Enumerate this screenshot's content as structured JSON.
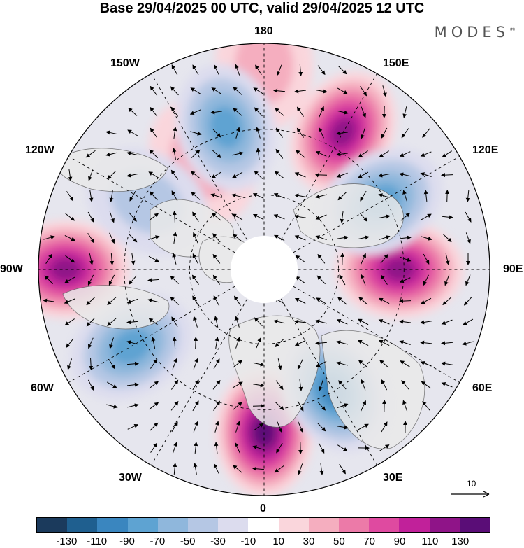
{
  "title": "Base 29/04/2025 00 UTC, valid 29/04/2025 12 UTC",
  "brand": "MODES",
  "brand_mark": "®",
  "longitude_labels": {
    "top": "180",
    "top_right": "150E",
    "right_upper": "120E",
    "right": "90E",
    "right_lower": "60E",
    "bottom_right": "30E",
    "bottom": "0",
    "bottom_left": "30W",
    "left_lower": "60W",
    "left": "90W",
    "left_upper": "120W",
    "top_left": "150W"
  },
  "reference_vector": "10",
  "colorbar": {
    "colors": [
      "#1b3a5c",
      "#1f5f8f",
      "#3a86bf",
      "#5ea3d2",
      "#8fb7dc",
      "#b5c7e4",
      "#dcdcee",
      "#ffffff",
      "#fad6dc",
      "#f5aebf",
      "#ec7aa8",
      "#df4aa0",
      "#c1219a",
      "#8f1488",
      "#5a0d77"
    ],
    "labels": [
      "-130",
      "-110",
      "-90",
      "-70",
      "-50",
      "-30",
      "-10",
      "10",
      "30",
      "50",
      "70",
      "90",
      "110",
      "130"
    ]
  },
  "anomaly_centres": [
    {
      "lon_label": "90W",
      "sign": "positive",
      "peak": "110"
    },
    {
      "lon_label": "0",
      "sign": "positive",
      "peak": "130"
    },
    {
      "lon_label": "90E",
      "sign": "positive",
      "peak": "110"
    },
    {
      "lon_label": "150E",
      "sign": "positive",
      "peak": "110"
    },
    {
      "lon_label": "180",
      "sign": "positive",
      "peak": "30"
    },
    {
      "lon_label": "150W",
      "sign": "positive",
      "peak": "30"
    },
    {
      "lon_label": "60W",
      "sign": "negative",
      "peak": "-70"
    },
    {
      "lon_label": "30E",
      "sign": "negative",
      "peak": "-90"
    },
    {
      "lon_label": "120E",
      "sign": "negative",
      "peak": "-70"
    },
    {
      "lon_label": "165W",
      "sign": "negative",
      "peak": "-70"
    },
    {
      "lon_label": "120W",
      "sign": "negative",
      "peak": "-30"
    }
  ]
}
